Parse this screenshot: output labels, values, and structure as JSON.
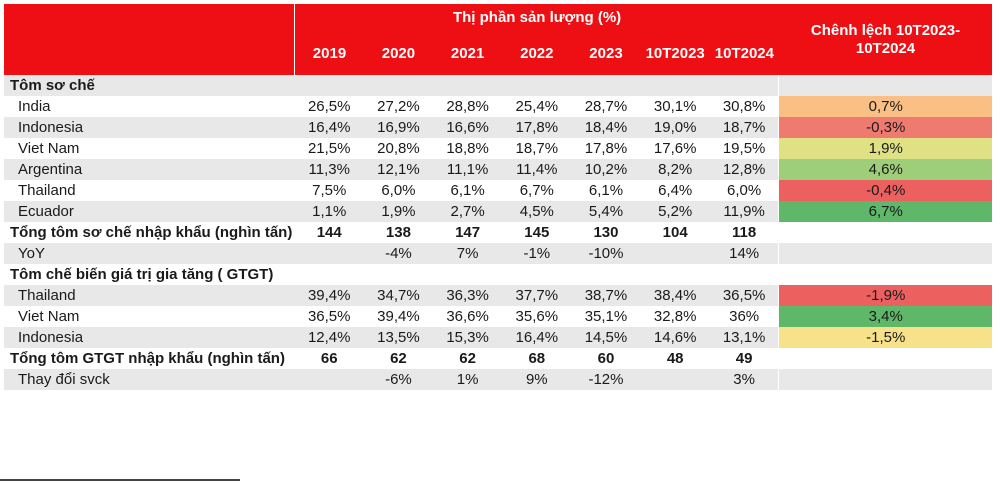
{
  "chart_data": {
    "type": "table",
    "header_group": "Thị phần sản lượng (%)",
    "years": [
      "2019",
      "2020",
      "2021",
      "2022",
      "2023",
      "10T2023",
      "10T2024"
    ],
    "diff_header": "Chênh lệch 10T2023-10T2024",
    "rows": [
      {
        "label": "Tôm sơ chế",
        "kind": "section",
        "values": [
          "",
          "",
          "",
          "",
          "",
          "",
          ""
        ],
        "diff": "",
        "shade": true
      },
      {
        "label": "India",
        "kind": "item",
        "values": [
          "26,5%",
          "27,2%",
          "28,8%",
          "25,4%",
          "28,7%",
          "30,1%",
          "30,8%"
        ],
        "diff": "0,7%",
        "diff_color": "#f9bf85",
        "shade": false
      },
      {
        "label": "Indonesia",
        "kind": "item",
        "values": [
          "16,4%",
          "16,9%",
          "16,6%",
          "17,8%",
          "18,4%",
          "19,0%",
          "18,7%"
        ],
        "diff": "-0,3%",
        "diff_color": "#ef7a70",
        "shade": true
      },
      {
        "label": "Viet Nam",
        "kind": "item",
        "values": [
          "21,5%",
          "20,8%",
          "18,8%",
          "18,7%",
          "17,8%",
          "17,6%",
          "19,5%"
        ],
        "diff": "1,9%",
        "diff_color": "#dfe184",
        "shade": false
      },
      {
        "label": "Argentina",
        "kind": "item",
        "values": [
          "11,3%",
          "12,1%",
          "11,1%",
          "11,4%",
          "10,2%",
          "8,2%",
          "12,8%"
        ],
        "diff": "4,6%",
        "diff_color": "#9fce7a",
        "shade": true
      },
      {
        "label": "Thailand",
        "kind": "item",
        "values": [
          "7,5%",
          "6,0%",
          "6,1%",
          "6,7%",
          "6,1%",
          "6,4%",
          "6,0%"
        ],
        "diff": "-0,4%",
        "diff_color": "#ec6060",
        "shade": false
      },
      {
        "label": "Ecuador",
        "kind": "item",
        "values": [
          "1,1%",
          "1,9%",
          "2,7%",
          "4,5%",
          "5,4%",
          "5,2%",
          "11,9%"
        ],
        "diff": "6,7%",
        "diff_color": "#5fb86a",
        "shade": true
      },
      {
        "label": "Tổng tôm sơ chế nhập khẩu (nghìn tấn)",
        "kind": "total",
        "values": [
          "144",
          "138",
          "147",
          "145",
          "130",
          "104",
          "118"
        ],
        "diff": "",
        "shade": false
      },
      {
        "label": "YoY",
        "kind": "item",
        "values": [
          "",
          "-4%",
          "7%",
          "-1%",
          "-10%",
          "",
          "14%"
        ],
        "diff": "",
        "shade": true
      },
      {
        "label": "Tôm chế biến giá trị gia tăng ( GTGT)",
        "kind": "section2",
        "values": [
          "",
          "",
          "",
          "",
          "",
          "",
          ""
        ],
        "diff": "",
        "shade": false
      },
      {
        "label": "Thailand",
        "kind": "item",
        "values": [
          "39,4%",
          "34,7%",
          "36,3%",
          "37,7%",
          "38,7%",
          "38,4%",
          "36,5%"
        ],
        "diff": "-1,9%",
        "diff_color": "#ec6060",
        "shade": true
      },
      {
        "label": "Viet Nam",
        "kind": "item",
        "values": [
          "36,5%",
          "39,4%",
          "36,6%",
          "35,6%",
          "35,1%",
          "32,8%",
          "36%"
        ],
        "diff": "3,4%",
        "diff_color": "#5fb86a",
        "shade": false
      },
      {
        "label": "Indonesia",
        "kind": "item",
        "values": [
          "12,4%",
          "13,5%",
          "15,3%",
          "16,4%",
          "14,5%",
          "14,6%",
          "13,1%"
        ],
        "diff": "-1,5%",
        "diff_color": "#f7e28a",
        "shade": true
      },
      {
        "label": "Tổng tôm GTGT nhập khẩu (nghìn tấn)",
        "kind": "total",
        "values": [
          "66",
          "62",
          "62",
          "68",
          "60",
          "48",
          "49"
        ],
        "diff": "",
        "shade": false
      },
      {
        "label": "Thay đổi svck",
        "kind": "item",
        "values": [
          "",
          "-6%",
          "1%",
          "9%",
          "-12%",
          "",
          "3%"
        ],
        "diff": "",
        "shade": true
      }
    ]
  }
}
